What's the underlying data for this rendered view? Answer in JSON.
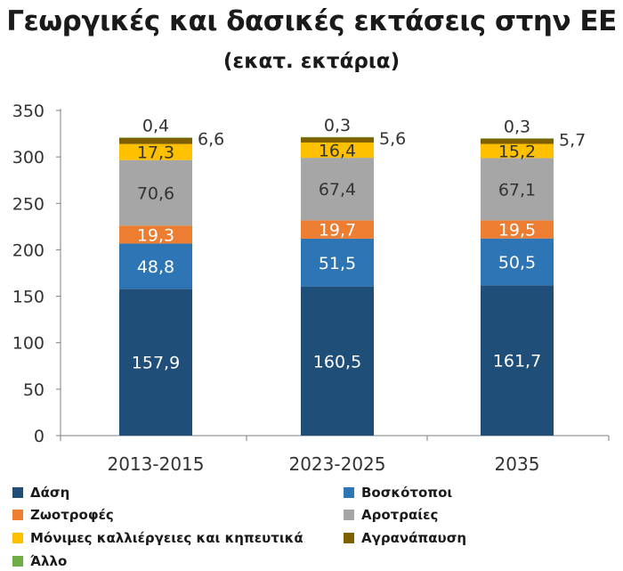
{
  "chart_data": {
    "type": "bar",
    "stacked": true,
    "title": "Γεωργικές και δασικές εκτάσεις στην ΕΕ",
    "subtitle": "(εκατ. εκτάρια)",
    "categories": [
      "2013-2015",
      "2023-2025",
      "2035"
    ],
    "ylim": [
      0,
      350
    ],
    "yticks": [
      0,
      50,
      100,
      150,
      200,
      250,
      300,
      350
    ],
    "grid": false,
    "legend_position": "bottom",
    "series": [
      {
        "name": "Δάση",
        "color": "#1f4e79",
        "label_color": "#ffffff",
        "values": [
          157.9,
          160.5,
          161.7
        ],
        "labels": [
          "157,9",
          "160,5",
          "161,7"
        ]
      },
      {
        "name": "Βοσκότοποι",
        "color": "#2e75b6",
        "label_color": "#ffffff",
        "values": [
          48.8,
          51.5,
          50.5
        ],
        "labels": [
          "48,8",
          "51,5",
          "50,5"
        ]
      },
      {
        "name": "Ζωοτροφές",
        "color": "#ed7d31",
        "label_color": "#ffffff",
        "values": [
          19.3,
          19.7,
          19.5
        ],
        "labels": [
          "19,3",
          "19,7",
          "19,5"
        ]
      },
      {
        "name": "Αροτραίες",
        "color": "#a6a6a6",
        "label_color": "#333333",
        "values": [
          70.6,
          67.4,
          67.1
        ],
        "labels": [
          "70,6",
          "67,4",
          "67,1"
        ]
      },
      {
        "name": "Μόνιμες καλλιέργειες και κηπευτικά",
        "color": "#ffc000",
        "label_color": "#333333",
        "values": [
          17.3,
          16.4,
          15.2
        ],
        "labels": [
          "17,3",
          "16,4",
          "15,2"
        ]
      },
      {
        "name": "Αγρανάπαυση",
        "color": "#7f6000",
        "label_color": "#333333",
        "values": [
          6.6,
          5.6,
          5.7
        ],
        "labels": [
          "6,6",
          "5,6",
          "5,7"
        ]
      },
      {
        "name": "Άλλο",
        "color": "#70ad47",
        "label_color": "#333333",
        "values": [
          0.4,
          0.3,
          0.3
        ],
        "labels": [
          "0,4",
          "0,3",
          "0,3"
        ]
      }
    ]
  }
}
